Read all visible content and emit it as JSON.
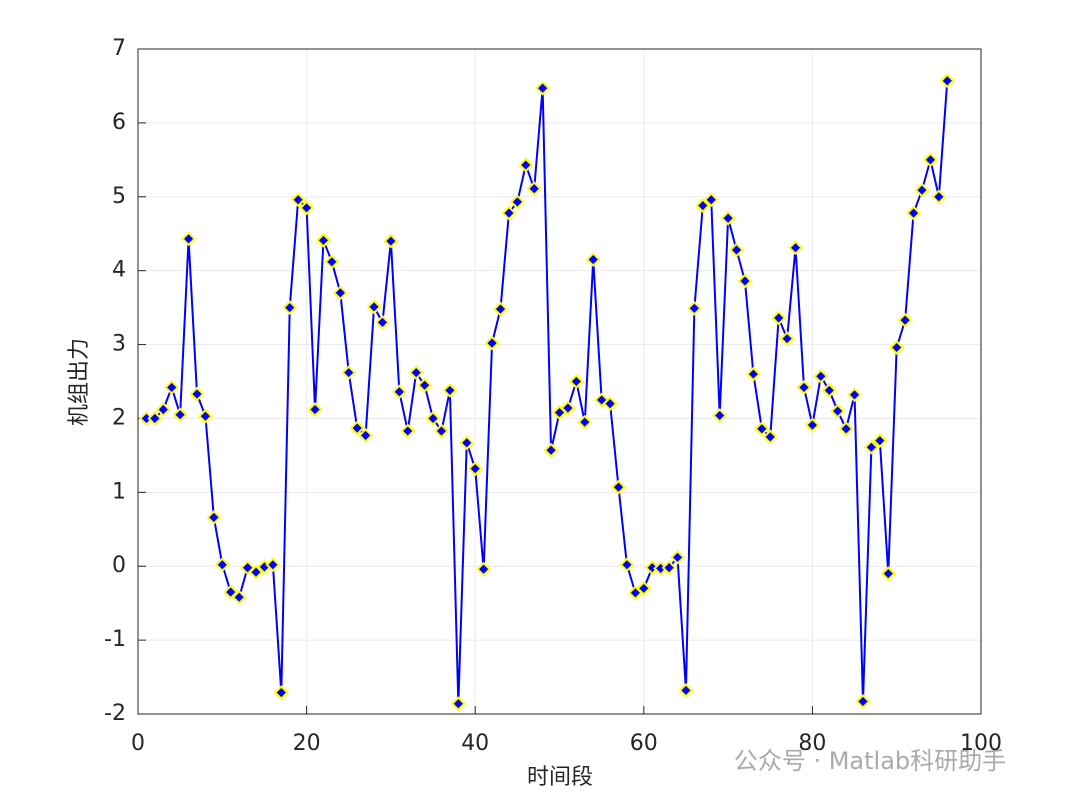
{
  "chart_data": {
    "type": "line",
    "xlabel": "时间段",
    "ylabel": "机组出力",
    "x": [
      1,
      2,
      3,
      4,
      5,
      6,
      7,
      8,
      9,
      10,
      11,
      12,
      13,
      14,
      15,
      16,
      17,
      18,
      19,
      20,
      21,
      22,
      23,
      24,
      25,
      26,
      27,
      28,
      29,
      30,
      31,
      32,
      33,
      34,
      35,
      36,
      37,
      38,
      39,
      40,
      41,
      42,
      43,
      44,
      45,
      46,
      47,
      48,
      49,
      50,
      51,
      52,
      53,
      54,
      55,
      56,
      57,
      58,
      59,
      60,
      61,
      62,
      63,
      64,
      65,
      66,
      67,
      68,
      69,
      70,
      71,
      72,
      73,
      74,
      75,
      76,
      77,
      78,
      79,
      80,
      81,
      82,
      83,
      84,
      85,
      86,
      87,
      88,
      89,
      90,
      91,
      92,
      93,
      94,
      95,
      96
    ],
    "series": [
      {
        "color": "#0000ff",
        "marker_color": "#ffff00",
        "values": [
          2.0,
          2.0,
          2.12,
          2.42,
          2.05,
          4.43,
          2.33,
          2.03,
          0.66,
          0.02,
          -0.35,
          -0.42,
          -0.02,
          -0.08,
          -0.01,
          0.02,
          -1.71,
          3.5,
          4.96,
          4.85,
          2.12,
          4.41,
          4.12,
          3.7,
          2.62,
          1.87,
          1.77,
          3.51,
          3.3,
          4.4,
          2.36,
          1.83,
          2.62,
          2.45,
          2.0,
          1.83,
          2.38,
          -1.86,
          1.67,
          1.32,
          -0.04,
          3.02,
          3.48,
          4.78,
          4.93,
          5.43,
          5.11,
          6.47,
          1.57,
          2.08,
          2.14,
          2.5,
          1.95,
          4.15,
          2.25,
          2.2,
          1.07,
          0.02,
          -0.36,
          -0.3,
          -0.02,
          -0.03,
          -0.02,
          0.12,
          -1.68,
          3.49,
          4.88,
          4.96,
          2.04,
          4.71,
          4.28,
          3.86,
          2.6,
          1.86,
          1.75,
          3.36,
          3.08,
          4.31,
          2.42,
          1.91,
          2.57,
          2.38,
          2.1,
          1.86,
          2.32,
          -1.83,
          1.61,
          1.7,
          -0.1,
          2.96,
          3.33,
          4.78,
          5.09,
          5.5,
          5.0,
          6.57
        ]
      }
    ],
    "xlim": [
      0,
      100
    ],
    "xticks": [
      0,
      20,
      40,
      60,
      80,
      100
    ],
    "ylim": [
      -2,
      7
    ],
    "yticks": [
      -2,
      -1,
      0,
      1,
      2,
      3,
      4,
      5,
      6,
      7
    ],
    "grid": true
  },
  "watermark": "公众号 · Matlab科研助手"
}
